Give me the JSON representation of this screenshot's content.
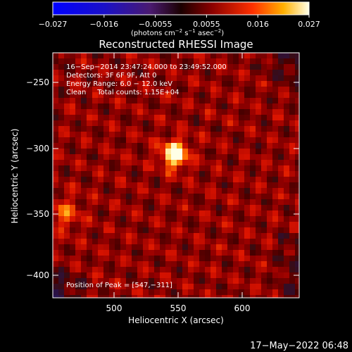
{
  "colorbar": {
    "ticks": [
      "−0.027",
      "−0.016",
      "−0.0055",
      "0.0055",
      "0.016",
      "0.027"
    ],
    "units_main": "(photons cm",
    "units_exp1": "−2",
    "units_mid1": " s",
    "units_exp2": "−1",
    "units_mid2": " asec",
    "units_exp3": "−2",
    "units_end": ")"
  },
  "title": "Reconstructed RHESSI Image",
  "info": {
    "line1": "16−Sep−2014 23:47:24.000 to 23:49:52.000",
    "line2": "Detectors: 3F 6F 9F, Att 0",
    "line3": "Energy Range: 6.0 − 12.0 keV",
    "line4": "Clean     Total counts: 1.15E+04"
  },
  "peak_label": "Position of Peak = [547,−311]",
  "axes": {
    "xlabel": "Heliocentric X (arcsec)",
    "ylabel": "Heliocentric Y (arcsec)",
    "xticks": [
      "500",
      "550",
      "600"
    ],
    "yticks": [
      "−250",
      "−300",
      "−350",
      "−400"
    ]
  },
  "timestamp": "17−May−2022 06:48",
  "image": {
    "x_range": [
      453,
      643
    ],
    "y_range": [
      -419,
      -234
    ],
    "peak_x": 547,
    "peak_y": -311,
    "secondary_source_x": 462,
    "secondary_source_y": -355
  }
}
